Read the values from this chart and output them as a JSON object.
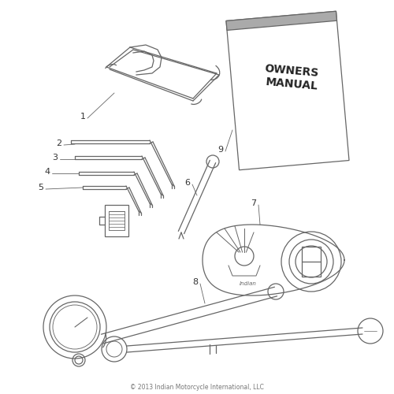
{
  "background_color": "#ffffff",
  "line_color": "#666666",
  "label_color": "#333333",
  "copyright_text": "© 2013 Indian Motorcycle International, LLC",
  "fig_width": 5.0,
  "fig_height": 5.0,
  "dpi": 100
}
